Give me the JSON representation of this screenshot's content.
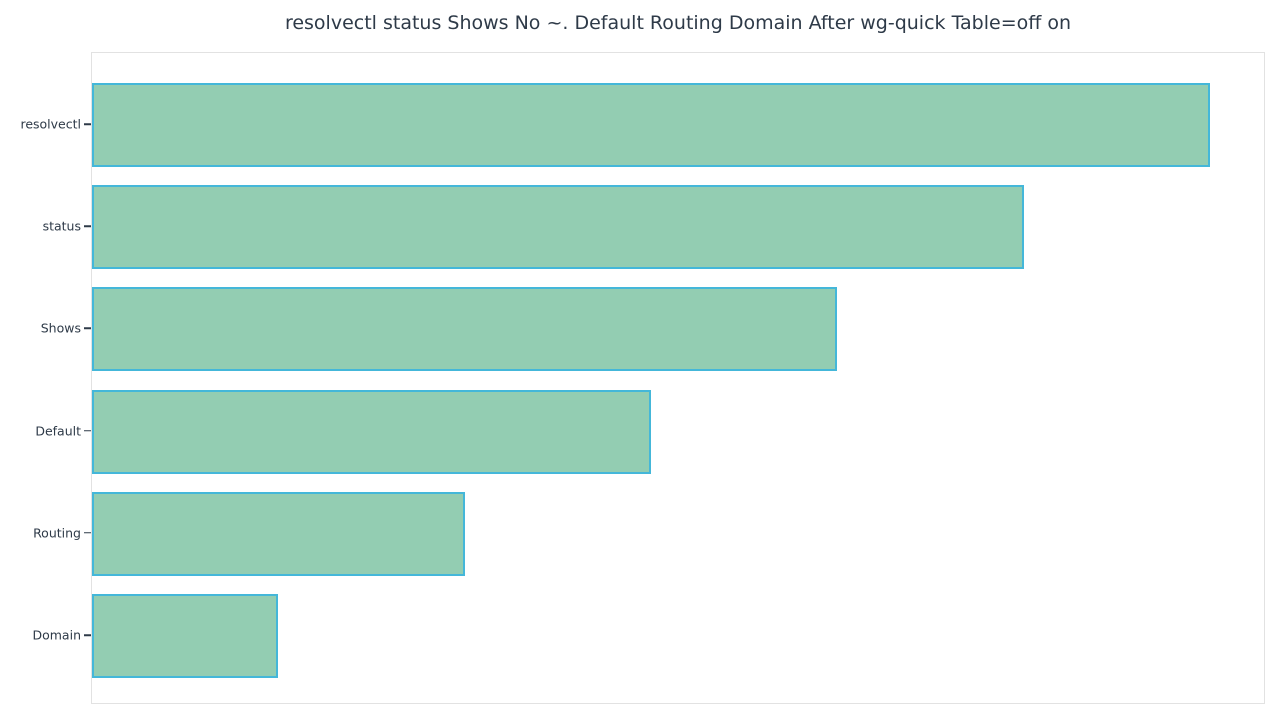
{
  "chart_data": {
    "type": "bar",
    "orientation": "horizontal",
    "title": "resolvectl status Shows No ~. Default Routing Domain After wg-quick Table=off on",
    "categories": [
      "resolvectl",
      "status",
      "Shows",
      "Default",
      "Routing",
      "Domain"
    ],
    "values": [
      6,
      5,
      4,
      3,
      2,
      1
    ],
    "xlabel": "",
    "ylabel": "",
    "xlim": [
      0,
      6.29
    ],
    "grid": false,
    "legend": false,
    "x_tick_labels_shown": false,
    "colors": {
      "bar_fill": "#93cdb2",
      "bar_edge": "#44b7d9",
      "title_text": "#2e3a48",
      "tick_text": "#2e3a48",
      "frame": "#e2e2e2",
      "background": "#ffffff"
    }
  }
}
